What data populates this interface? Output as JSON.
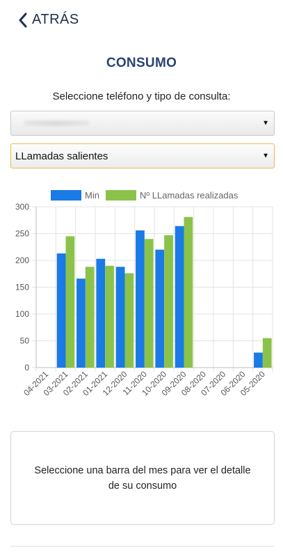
{
  "header": {
    "back_label": "ATRÁS"
  },
  "page": {
    "title": "CONSUMO",
    "subtitle": "Seleccione teléfono y tipo de consulta:"
  },
  "selects": {
    "phone": {
      "value": ""
    },
    "type": {
      "value": "LLamadas salientes"
    }
  },
  "colors": {
    "min": "#1a7ae6",
    "calls": "#8bc34a",
    "title": "#2a4470"
  },
  "chart_data": {
    "type": "bar",
    "categories": [
      "04-2021",
      "03-2021",
      "02-2021",
      "01-2021",
      "12-2020",
      "11-2020",
      "10-2020",
      "09-2020",
      "08-2020",
      "07-2020",
      "06-2020",
      "05-2020"
    ],
    "series": [
      {
        "name": "Min",
        "values": [
          0,
          213,
          166,
          203,
          188,
          256,
          220,
          264,
          0,
          0,
          0,
          28
        ]
      },
      {
        "name": "Nº LLamadas realizadas",
        "values": [
          0,
          245,
          188,
          190,
          176,
          240,
          247,
          281,
          0,
          0,
          0,
          55
        ]
      }
    ],
    "ylim": [
      0,
      300
    ],
    "yticks": [
      0,
      50,
      100,
      150,
      200,
      250,
      300
    ],
    "grid": true,
    "legend": "top"
  },
  "info": {
    "text": "Seleccione una barra del mes para ver el detalle de su consumo"
  }
}
